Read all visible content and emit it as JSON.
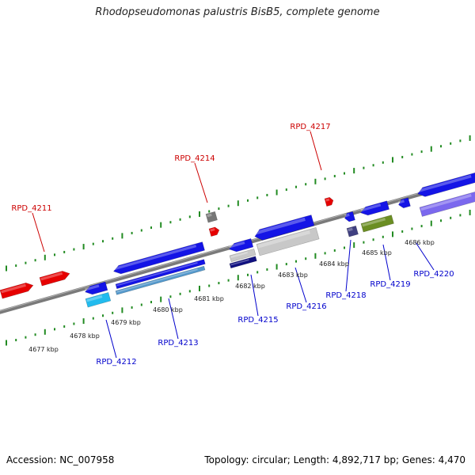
{
  "title": "Rhodopseudomonas palustris BisB5, complete genome",
  "footer": {
    "accession": "Accession: NC_007958",
    "summary": "Topology: circular; Length: 4,892,717 bp; Genes: 4,470"
  },
  "colors": {
    "forward_label": "#cc0000",
    "reverse_label": "#0000cc",
    "backbone": "#888888",
    "dot_track": "#228b22"
  },
  "ticks": [
    "4677 kbp",
    "4678 kbp",
    "4679 kbp",
    "4680 kbp",
    "4681 kbp",
    "4682 kbp",
    "4683 kbp",
    "4684 kbp",
    "4685 kbp",
    "4686 kbp"
  ],
  "genes": [
    {
      "label": "RPD_4211",
      "strand": "forward",
      "color": "#ee0000"
    },
    {
      "label": "RPD_4212",
      "strand": "reverse",
      "color": "#1414e6"
    },
    {
      "label": "RPD_4213",
      "strand": "reverse",
      "color": "#1414e6"
    },
    {
      "label": "RPD_4214",
      "strand": "forward",
      "color": "#ee0000"
    },
    {
      "label": "RPD_4215",
      "strand": "reverse",
      "color": "#1414e6"
    },
    {
      "label": "RPD_4216",
      "strand": "reverse",
      "color": "#1414e6"
    },
    {
      "label": "RPD_4217",
      "strand": "forward",
      "color": "#ee0000"
    },
    {
      "label": "RPD_4218",
      "strand": "reverse",
      "color": "#1414e6"
    },
    {
      "label": "RPD_4219",
      "strand": "reverse",
      "color": "#1414e6"
    },
    {
      "label": "RPD_4220",
      "strand": "reverse",
      "color": "#1414e6"
    }
  ]
}
